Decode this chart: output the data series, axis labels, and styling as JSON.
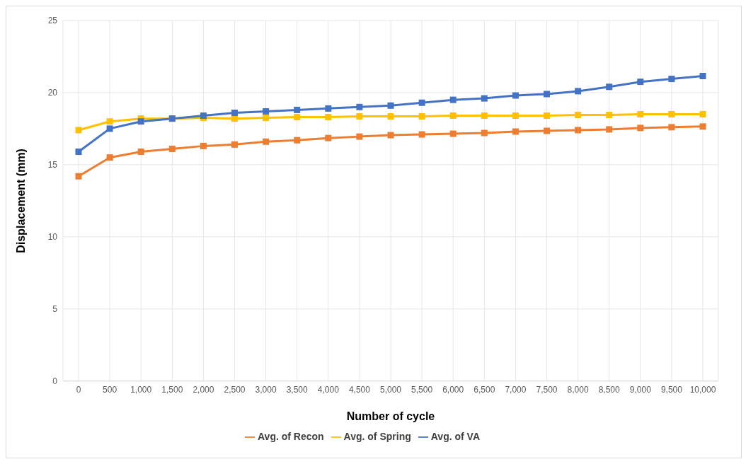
{
  "chart_data": {
    "type": "line",
    "xlabel": "Number of cycle",
    "ylabel": "Displacement (mm)",
    "categories": [
      "0",
      "500",
      "1,000",
      "1,500",
      "2,000",
      "2,500",
      "3,000",
      "3,500",
      "4,000",
      "4,500",
      "5,000",
      "5,500",
      "6,000",
      "6,500",
      "7,000",
      "7,500",
      "8,000",
      "8,500",
      "9,000",
      "9,500",
      "10,000"
    ],
    "series": [
      {
        "name": "Avg. of Recon",
        "color": "#ed7d31",
        "values": [
          14.2,
          15.5,
          15.9,
          16.1,
          16.3,
          16.4,
          16.6,
          16.7,
          16.85,
          16.95,
          17.05,
          17.1,
          17.15,
          17.2,
          17.3,
          17.35,
          17.4,
          17.45,
          17.55,
          17.6,
          17.65
        ]
      },
      {
        "name": "Avg. of Spring",
        "color": "#ffc000",
        "values": [
          17.4,
          18.0,
          18.2,
          18.2,
          18.25,
          18.2,
          18.25,
          18.3,
          18.3,
          18.35,
          18.35,
          18.35,
          18.4,
          18.4,
          18.4,
          18.4,
          18.45,
          18.45,
          18.5,
          18.5,
          18.5
        ]
      },
      {
        "name": "Avg. of VA",
        "color": "#4472c4",
        "values": [
          15.9,
          17.5,
          18.0,
          18.2,
          18.4,
          18.6,
          18.7,
          18.8,
          18.9,
          19.0,
          19.1,
          19.3,
          19.5,
          19.6,
          19.8,
          19.9,
          20.1,
          20.4,
          20.75,
          20.95,
          21.15
        ]
      }
    ],
    "ylim": [
      0,
      25
    ],
    "yticks": [
      0,
      5,
      10,
      15,
      20,
      25
    ],
    "grid": true,
    "legend": "bottom",
    "marker": "square",
    "line_style": "solid"
  }
}
